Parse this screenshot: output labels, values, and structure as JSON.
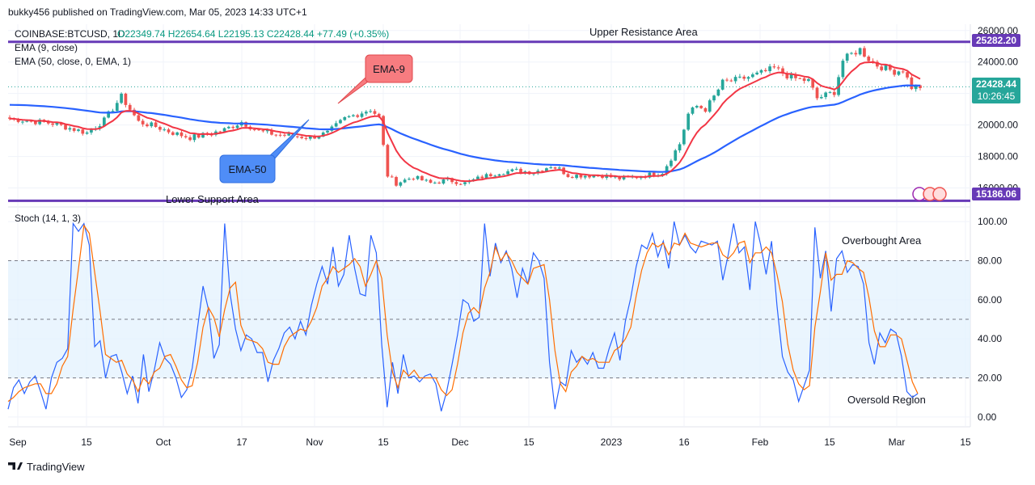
{
  "header": {
    "published": "bukky456 published on TradingView.com, Mar 05, 2023 14:33 UTC+1"
  },
  "legend": {
    "symbol": "COINBASE:BTCUSD, 1D",
    "ohlc": "O22349.74  H22654.64  L22195.13  C22428.44  +77.49 (+0.35%)",
    "ema9": "EMA (9, close)",
    "ema50": "EMA (50, close, 0, EMA, 1)",
    "stoch": "Stoch (14, 1, 3)"
  },
  "annotations": {
    "upper_resistance": "Upper Resistance Area",
    "lower_support": "Lower Support Area",
    "ema9_callout": "EMA-9",
    "ema50_callout": "EMA-50",
    "overbought": "Overbought Area",
    "oversold": "Oversold Region"
  },
  "price_badges": {
    "resistance": "25282.20",
    "last": "22428.44",
    "countdown": "10:26:45",
    "support": "15186.06"
  },
  "footer": {
    "brand": "TradingView"
  },
  "colors": {
    "up": "#26a69a",
    "down": "#ef5350",
    "ema9": "#f23645",
    "ema50": "#2962ff",
    "level": "#673ab7",
    "stoch_k": "#2962ff",
    "stoch_d": "#ff6d00",
    "band": "#e3f2fd",
    "grid": "#f0f3fa"
  },
  "chart_data": [
    {
      "type": "candlestick",
      "title": "COINBASE:BTCUSD, 1D",
      "price_ticks": [
        16000,
        18000,
        20000,
        22000,
        24000,
        26000
      ],
      "price_tick_labels": [
        "16000.00",
        "18000.00",
        "20000.00",
        "22000.00",
        "24000.00",
        "26000.00"
      ],
      "ylim": [
        15000,
        26400
      ],
      "x_ticks": [
        "Sep",
        "15",
        "Oct",
        "17",
        "Nov",
        "15",
        "Dec",
        "15",
        "2023",
        "16",
        "Feb",
        "15",
        "Mar",
        "15"
      ],
      "levels": {
        "upper_resistance": 25282.2,
        "lower_support": 15186.06,
        "last": 22428.44
      },
      "series": [
        {
          "name": "EMA (9, close)",
          "values": []
        },
        {
          "name": "EMA (50, close, 0, EMA, 1)",
          "values": []
        }
      ],
      "close_path": [
        [
          0,
          20400
        ],
        [
          10,
          20100
        ],
        [
          18,
          19500
        ],
        [
          22,
          20300
        ],
        [
          26,
          21800
        ],
        [
          30,
          20200
        ],
        [
          34,
          19900
        ],
        [
          38,
          19500
        ],
        [
          42,
          19200
        ],
        [
          46,
          19400
        ],
        [
          50,
          19700
        ],
        [
          54,
          20200
        ],
        [
          58,
          19600
        ],
        [
          62,
          19400
        ],
        [
          66,
          19300
        ],
        [
          70,
          19200
        ],
        [
          74,
          19500
        ],
        [
          78,
          20400
        ],
        [
          82,
          20800
        ],
        [
          84,
          21000
        ],
        [
          86,
          20500
        ],
        [
          88,
          16800
        ],
        [
          90,
          16300
        ],
        [
          94,
          16700
        ],
        [
          98,
          16300
        ],
        [
          102,
          16500
        ],
        [
          106,
          16300
        ],
        [
          110,
          16700
        ],
        [
          114,
          17000
        ],
        [
          118,
          17100
        ],
        [
          122,
          17000
        ],
        [
          126,
          17400
        ],
        [
          128,
          17200
        ],
        [
          130,
          16800
        ],
        [
          134,
          16800
        ],
        [
          138,
          16800
        ],
        [
          142,
          16600
        ],
        [
          146,
          16700
        ],
        [
          150,
          16900
        ],
        [
          152,
          17000
        ],
        [
          154,
          17900
        ],
        [
          156,
          18800
        ],
        [
          158,
          20700
        ],
        [
          160,
          21200
        ],
        [
          162,
          21000
        ],
        [
          164,
          21800
        ],
        [
          166,
          22700
        ],
        [
          170,
          22900
        ],
        [
          174,
          23200
        ],
        [
          178,
          23600
        ],
        [
          182,
          23000
        ],
        [
          186,
          22800
        ],
        [
          188,
          21700
        ],
        [
          190,
          21900
        ],
        [
          192,
          22100
        ],
        [
          194,
          24100
        ],
        [
          196,
          24500
        ],
        [
          198,
          24800
        ],
        [
          200,
          24200
        ],
        [
          202,
          23800
        ],
        [
          206,
          23400
        ],
        [
          208,
          23500
        ],
        [
          210,
          22400
        ],
        [
          212,
          22428
        ]
      ]
    },
    {
      "type": "line",
      "title": "Stoch (14, 1, 3)",
      "y_ticks": [
        0,
        20,
        40,
        60,
        80,
        100
      ],
      "y_tick_labels": [
        "0.00",
        "20.00",
        "40.00",
        "60.00",
        "80.00",
        "100.00"
      ],
      "ylim": [
        -5,
        105
      ],
      "bands": {
        "overbought": 80,
        "middle": 50,
        "oversold": 20
      },
      "series": [
        {
          "name": "K",
          "values": [
            4,
            15,
            19,
            12,
            18,
            21,
            13,
            4,
            20,
            28,
            30,
            35,
            99,
            95,
            99,
            88,
            36,
            39,
            20,
            31,
            32,
            23,
            12,
            21,
            7,
            32,
            13,
            24,
            38,
            30,
            27,
            20,
            10,
            14,
            25,
            46,
            67,
            55,
            30,
            37,
            99,
            63,
            45,
            34,
            42,
            40,
            33,
            33,
            18,
            29,
            35,
            43,
            46,
            40,
            49,
            42,
            57,
            68,
            77,
            68,
            87,
            67,
            73,
            93,
            76,
            63,
            62,
            93,
            84,
            37,
            5,
            28,
            12,
            32,
            20,
            21,
            18,
            21,
            22,
            17,
            3,
            13,
            27,
            42,
            60,
            58,
            49,
            51,
            99,
            72,
            89,
            79,
            85,
            76,
            61,
            76,
            68,
            84,
            80,
            71,
            28,
            4,
            18,
            16,
            34,
            28,
            31,
            27,
            33,
            25,
            25,
            35,
            43,
            29,
            49,
            61,
            77,
            88,
            86,
            94,
            82,
            90,
            76,
            100,
            88,
            93,
            87,
            84,
            90,
            89,
            88,
            90,
            70,
            83,
            99,
            84,
            87,
            65,
            100,
            88,
            73,
            90,
            57,
            31,
            23,
            19,
            8,
            16,
            24,
            97,
            71,
            85,
            54,
            81,
            85,
            74,
            78,
            77,
            68,
            38,
            27,
            43,
            38,
            45,
            43,
            31,
            13,
            10,
            12
          ]
        },
        {
          "name": "D",
          "values": [
            8,
            10,
            13,
            15,
            16,
            17,
            17,
            12,
            12,
            17,
            26,
            31,
            55,
            76,
            98,
            94,
            74,
            54,
            32,
            30,
            28,
            29,
            22,
            19,
            13,
            20,
            17,
            23,
            25,
            31,
            32,
            26,
            19,
            15,
            16,
            28,
            46,
            56,
            51,
            41,
            55,
            66,
            69,
            47,
            40,
            39,
            38,
            35,
            28,
            27,
            27,
            36,
            41,
            43,
            45,
            44,
            49,
            56,
            67,
            71,
            77,
            74,
            76,
            78,
            81,
            77,
            67,
            73,
            80,
            71,
            42,
            23,
            15,
            24,
            21,
            24,
            20,
            20,
            20,
            20,
            14,
            11,
            14,
            27,
            43,
            53,
            56,
            53,
            66,
            74,
            87,
            80,
            84,
            80,
            74,
            71,
            68,
            76,
            77,
            78,
            60,
            34,
            17,
            13,
            23,
            26,
            31,
            29,
            30,
            28,
            28,
            28,
            34,
            36,
            40,
            46,
            62,
            75,
            84,
            89,
            87,
            89,
            83,
            89,
            88,
            94,
            89,
            88,
            87,
            88,
            89,
            89,
            83,
            81,
            84,
            89,
            90,
            79,
            84,
            84,
            87,
            84,
            73,
            59,
            37,
            24,
            17,
            14,
            16,
            46,
            64,
            84,
            70,
            73,
            73,
            80,
            79,
            76,
            74,
            61,
            44,
            36,
            36,
            42,
            42,
            40,
            29,
            18,
            12
          ]
        }
      ]
    }
  ]
}
